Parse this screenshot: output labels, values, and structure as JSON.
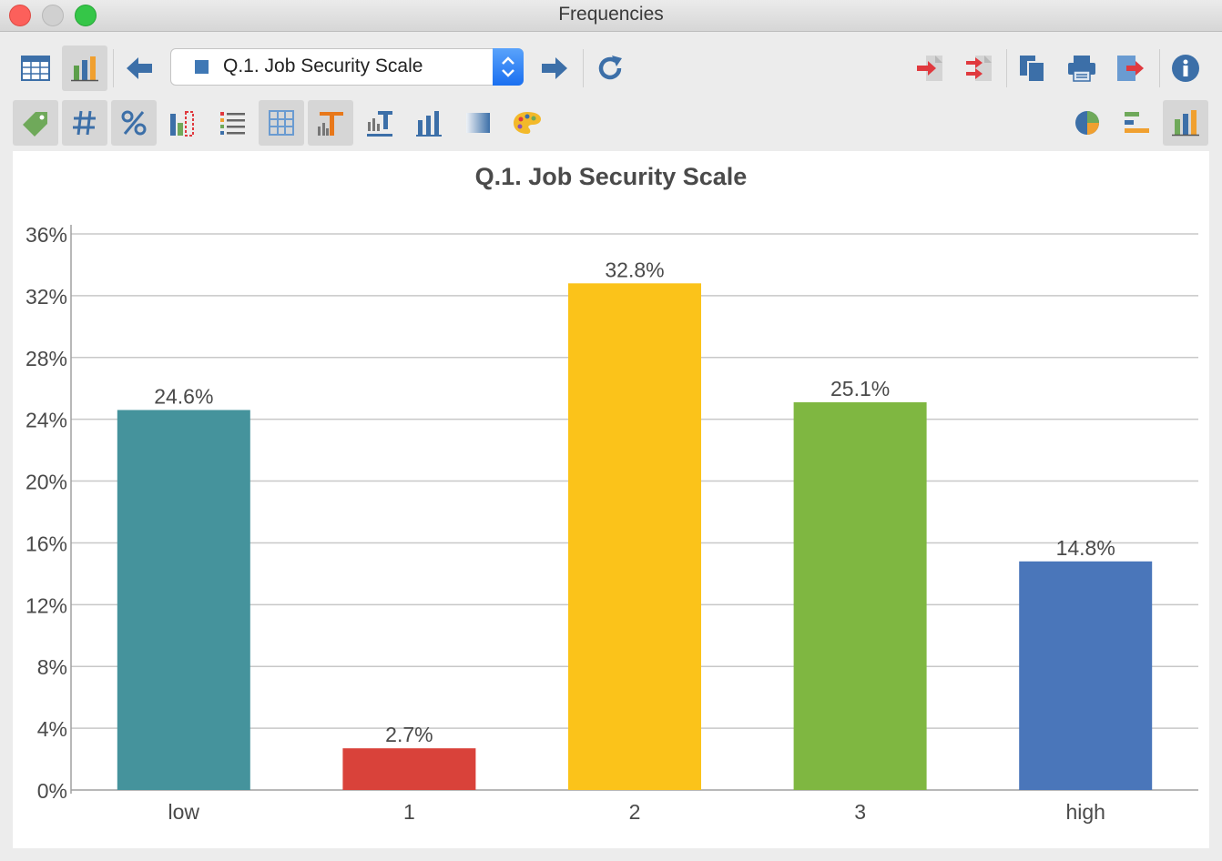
{
  "window": {
    "title": "Frequencies"
  },
  "toolbar": {
    "variable_selector": {
      "selected": "Q.1. Job Security Scale"
    }
  },
  "colors": {
    "bar_low": "#45939c",
    "bar_1": "#d9423a",
    "bar_2": "#fbc31a",
    "bar_3": "#7fb741",
    "bar_high": "#4a76ba"
  },
  "chart_data": {
    "type": "bar",
    "title": "Q.1. Job Security Scale",
    "categories": [
      "low",
      "1",
      "2",
      "3",
      "high"
    ],
    "values": [
      24.6,
      2.7,
      32.8,
      25.1,
      14.8
    ],
    "value_labels": [
      "24.6%",
      "2.7%",
      "32.8%",
      "25.1%",
      "14.8%"
    ],
    "colors": [
      "#45939c",
      "#d9423a",
      "#fbc31a",
      "#7fb741",
      "#4a76ba"
    ],
    "ylim": [
      0,
      36
    ],
    "yticks": [
      0,
      4,
      8,
      12,
      16,
      20,
      24,
      28,
      32,
      36
    ],
    "ytick_labels": [
      "0%",
      "4%",
      "8%",
      "12%",
      "16%",
      "20%",
      "24%",
      "28%",
      "32%",
      "36%"
    ],
    "xlabel": "",
    "ylabel": "",
    "grid": true,
    "legend": false
  }
}
